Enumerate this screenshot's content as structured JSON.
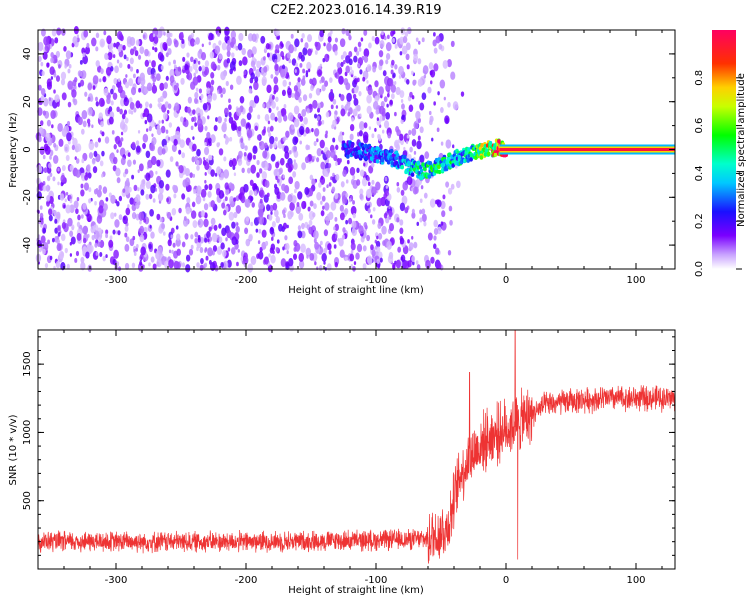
{
  "title": "C2E2.2023.016.14.39.R19",
  "chart_data": [
    {
      "type": "heatmap",
      "xlabel": "Height of straight line (km)",
      "ylabel": "Frequency (Hz)",
      "xlim": [
        -360,
        130
      ],
      "ylim": [
        -50,
        50
      ],
      "xticks": [
        -300,
        -200,
        -100,
        0,
        100
      ],
      "yticks": [
        -40,
        -20,
        0,
        20,
        40
      ],
      "signal_track": {
        "x": [
          -120,
          -100,
          -85,
          -75,
          -65,
          -55,
          -45,
          -35,
          -25,
          -15,
          -5,
          0,
          20,
          60,
          100,
          130
        ],
        "freq": [
          0,
          -2,
          -4,
          -7,
          -9,
          -8,
          -5,
          -3,
          -1,
          0,
          1,
          0,
          0,
          0,
          0,
          0
        ],
        "amplitude": [
          0.25,
          0.3,
          0.3,
          0.4,
          0.45,
          0.5,
          0.45,
          0.4,
          0.45,
          0.7,
          0.9,
          1.0,
          1.0,
          1.0,
          1.0,
          1.0
        ]
      },
      "noise_region_x": [
        -360,
        -50
      ],
      "colorbar": {
        "label": "Normalized spectral amplitude",
        "range": [
          0.0,
          1.0
        ],
        "ticks": [
          "0.0",
          "0.2",
          "0.4",
          "0.6",
          "0.8"
        ]
      }
    },
    {
      "type": "line",
      "xlabel": "Height of straight line (km)",
      "ylabel": "SNR (10 * v/v)",
      "xlim": [
        -360,
        130
      ],
      "ylim": [
        0,
        1750
      ],
      "xticks": [
        -300,
        -200,
        -100,
        0,
        100
      ],
      "yticks": [
        500,
        1000,
        1500
      ],
      "color": "#ee3333",
      "profile": {
        "x": [
          -360,
          -300,
          -200,
          -100,
          -60,
          -45,
          -35,
          -25,
          -15,
          -5,
          5,
          15,
          30,
          50,
          80,
          110,
          130
        ],
        "y": [
          200,
          200,
          200,
          210,
          220,
          300,
          700,
          850,
          950,
          1000,
          1050,
          1100,
          1200,
          1230,
          1250,
          1250,
          1250
        ]
      },
      "spikes": [
        {
          "x": 7,
          "y": 1750
        },
        {
          "x": 9,
          "y": 70
        },
        {
          "x": -28,
          "y": 1440
        }
      ]
    }
  ]
}
